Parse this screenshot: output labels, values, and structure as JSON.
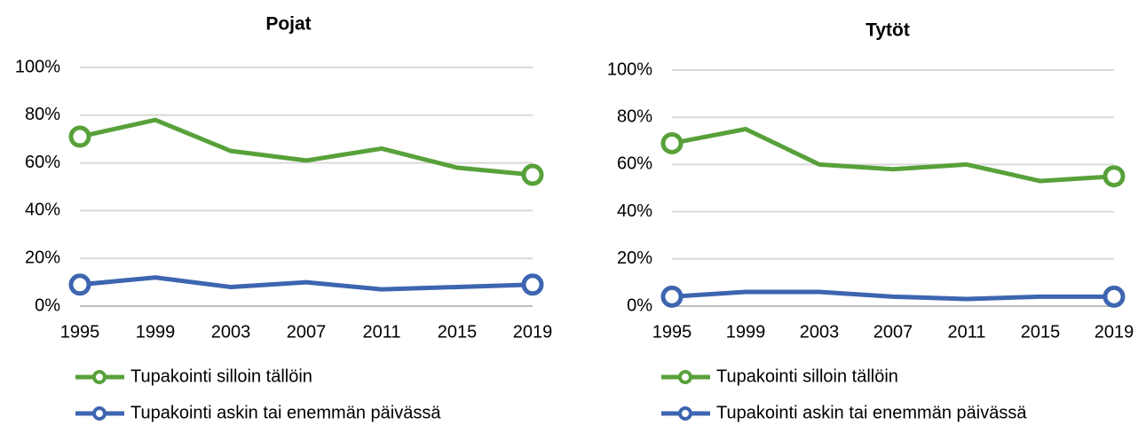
{
  "chart_data": [
    {
      "type": "line",
      "title": "Pojat",
      "categories": [
        "1995",
        "1999",
        "2003",
        "2007",
        "2011",
        "2015",
        "2019"
      ],
      "series": [
        {
          "name": "Tupakointi silloin tällöin",
          "color": "#58a13a",
          "values": [
            71,
            78,
            65,
            61,
            66,
            58,
            55
          ]
        },
        {
          "name": "Tupakointi askin tai enemmän päivässä",
          "color": "#3d65b0",
          "values": [
            9,
            12,
            8,
            10,
            7,
            8,
            9
          ]
        }
      ],
      "ylim": [
        0,
        100
      ],
      "yticks": [
        {
          "value": 0,
          "label": "0%"
        },
        {
          "value": 20,
          "label": "20%"
        },
        {
          "value": 40,
          "label": "40%"
        },
        {
          "value": 60,
          "label": "60%"
        },
        {
          "value": 80,
          "label": "80%"
        },
        {
          "value": 100,
          "label": "100%"
        }
      ],
      "grid": true
    },
    {
      "type": "line",
      "title": "Tytöt",
      "categories": [
        "1995",
        "1999",
        "2003",
        "2007",
        "2011",
        "2015",
        "2019"
      ],
      "series": [
        {
          "name": "Tupakointi silloin tällöin",
          "color": "#58a13a",
          "values": [
            69,
            75,
            60,
            58,
            60,
            53,
            55
          ]
        },
        {
          "name": "Tupakointi askin tai enemmän päivässä",
          "color": "#3d65b0",
          "values": [
            4,
            6,
            6,
            4,
            3,
            4,
            4
          ]
        }
      ],
      "ylim": [
        0,
        100
      ],
      "yticks": [
        {
          "value": 0,
          "label": "0%"
        },
        {
          "value": 20,
          "label": "20%"
        },
        {
          "value": 40,
          "label": "40%"
        },
        {
          "value": 60,
          "label": "60%"
        },
        {
          "value": 80,
          "label": "80%"
        },
        {
          "value": 100,
          "label": "100%"
        }
      ],
      "grid": true
    }
  ]
}
